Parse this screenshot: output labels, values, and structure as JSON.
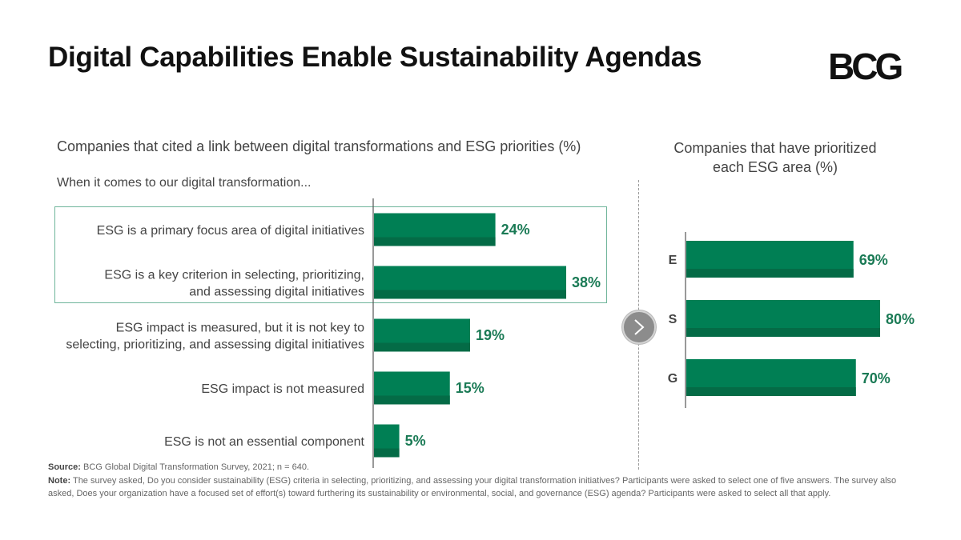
{
  "header": {
    "title": "Digital Capabilities Enable Sustainability Agendas",
    "logo": "BCG"
  },
  "left_panel": {
    "title": "Companies that cited a link between digital transformations and ESG priorities (%)",
    "subtitle": "When it comes to our digital transformation..."
  },
  "right_panel": {
    "title_line1": "Companies that have prioritized",
    "title_line2": "each ESG area (%)"
  },
  "colors": {
    "bar": "#007f54",
    "bar_shadow": "#046b46",
    "label": "#1a7a55",
    "highlight": "#6fb59a"
  },
  "chart_data": [
    {
      "type": "bar",
      "orientation": "horizontal",
      "categories": [
        [
          "ESG is a primary focus area of digital initiatives"
        ],
        [
          "ESG is a key criterion in selecting, prioritizing,",
          "and assessing digital initiatives"
        ],
        [
          "ESG impact is measured, but it is not key to",
          "selecting, prioritizing, and assessing digital initiatives"
        ],
        [
          "ESG impact is not measured"
        ],
        [
          "ESG is not an essential component"
        ]
      ],
      "values": [
        24,
        38,
        19,
        15,
        5
      ],
      "value_labels": [
        "24%",
        "38%",
        "19%",
        "15%",
        "5%"
      ],
      "highlighted": [
        0,
        1
      ]
    },
    {
      "type": "bar",
      "orientation": "horizontal",
      "categories": [
        "E",
        "S",
        "G"
      ],
      "values": [
        69,
        80,
        70
      ],
      "value_labels": [
        "69%",
        "80%",
        "70%"
      ]
    }
  ],
  "footnote": {
    "source_label": "Source:",
    "source_text": "BCG Global Digital Transformation Survey, 2021; n = 640.",
    "note_label": "Note:",
    "note_text": "The survey asked, Do you consider sustainability (ESG) criteria in selecting, prioritizing, and assessing your digital transformation initiatives? Participants were asked to select one of five answers. The survey also asked, Does your organization have a focused set of effort(s) toward furthering its sustainability or environmental, social, and governance (ESG) agenda? Participants were asked to select all that apply."
  }
}
